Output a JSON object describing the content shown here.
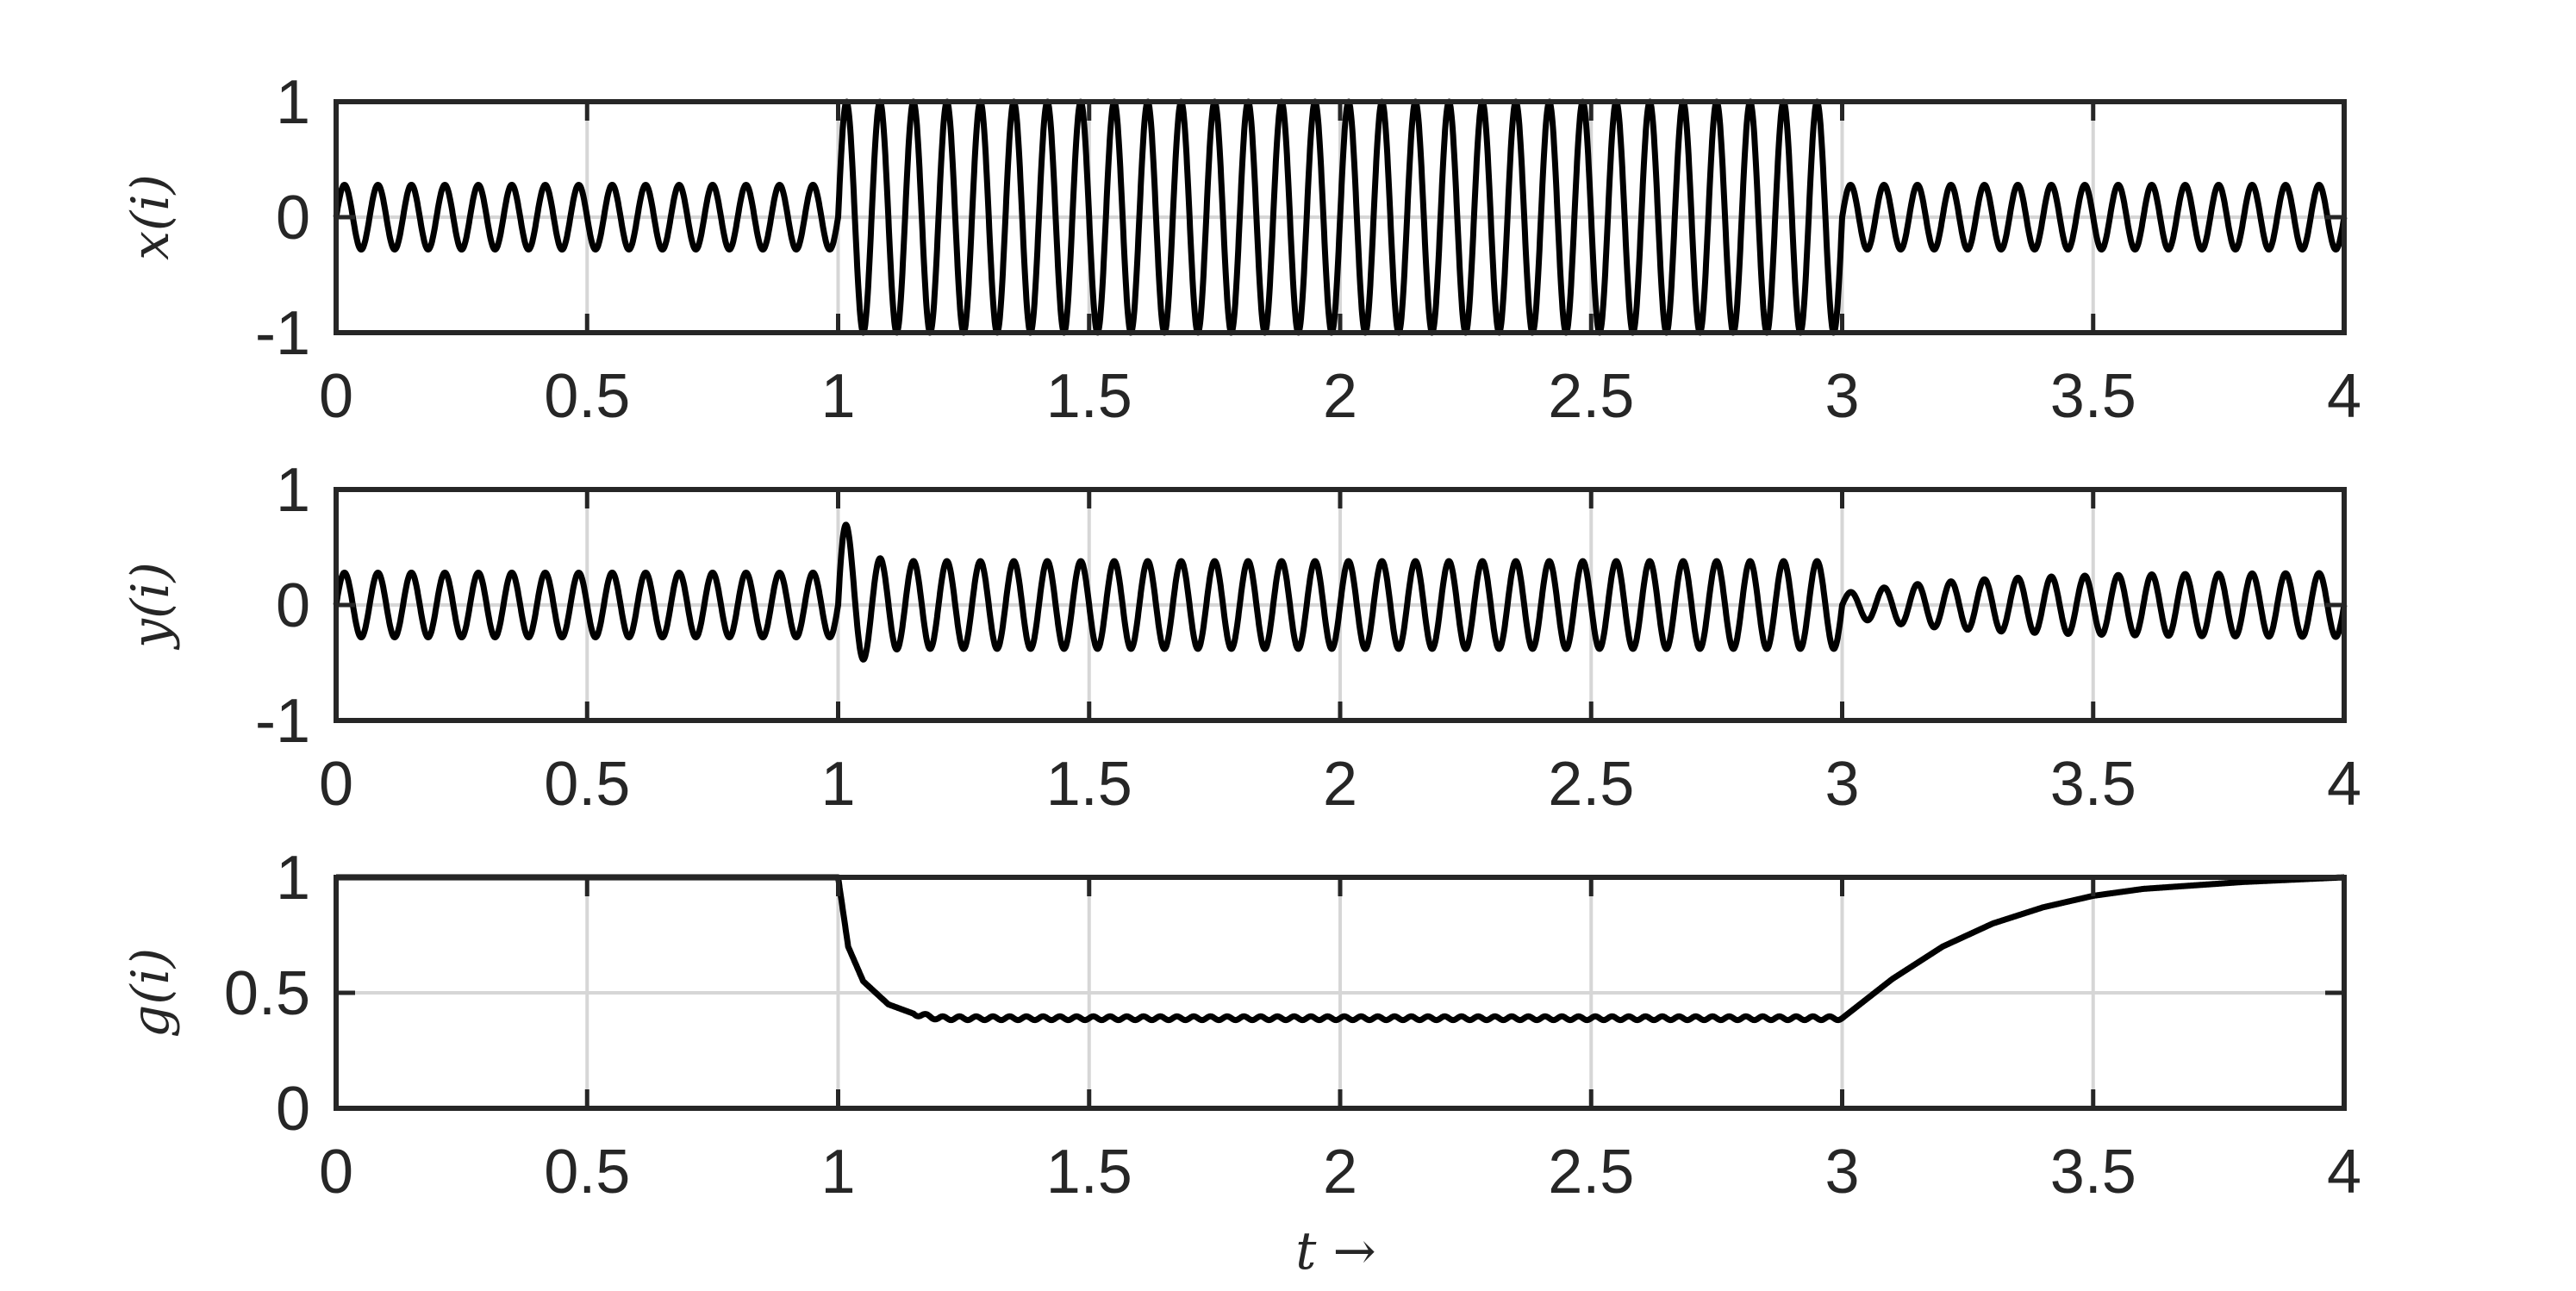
{
  "chart_data": [
    {
      "type": "line",
      "id": "x",
      "ylabel": "x(i)",
      "xlim": [
        0,
        4
      ],
      "ylim": [
        -1,
        1
      ],
      "xticks": [
        "0",
        "0.5",
        "1",
        "1.5",
        "2",
        "2.5",
        "3",
        "3.5",
        "4"
      ],
      "yticks": [
        "1",
        "0",
        "-1"
      ],
      "grid": true,
      "series": [
        {
          "segments": [
            {
              "t_start": 0,
              "t_end": 1,
              "amplitude": 0.28,
              "frequency_hz": 15
            },
            {
              "t_start": 1,
              "t_end": 3,
              "amplitude": 1.0,
              "frequency_hz": 15
            },
            {
              "t_start": 3,
              "t_end": 4,
              "amplitude": 0.28,
              "frequency_hz": 15
            }
          ]
        }
      ]
    },
    {
      "type": "line",
      "id": "y",
      "ylabel": "y(i)",
      "xlim": [
        0,
        4
      ],
      "ylim": [
        -1,
        1
      ],
      "xticks": [
        "0",
        "0.5",
        "1",
        "1.5",
        "2",
        "2.5",
        "3",
        "3.5",
        "4"
      ],
      "yticks": [
        "1",
        "0",
        "-1"
      ],
      "grid": true,
      "series": [
        {
          "peak_after_step": 0.78,
          "trough_after_step": -0.52,
          "segments": [
            {
              "t_start": 0,
              "t_end": 1,
              "amplitude": 0.28,
              "frequency_hz": 15
            },
            {
              "t_start": 1,
              "t_end": 3,
              "amplitude": 0.38,
              "frequency_hz": 15
            },
            {
              "t_start": 3,
              "t_end": 4,
              "amplitude_start": 0.1,
              "amplitude_end": 0.28,
              "frequency_hz": 15
            }
          ]
        }
      ]
    },
    {
      "type": "line",
      "id": "g",
      "ylabel": "g(i)",
      "xlabel": "t →",
      "xlim": [
        0,
        4
      ],
      "ylim": [
        0,
        1
      ],
      "xticks": [
        "0",
        "0.5",
        "1",
        "1.5",
        "2",
        "2.5",
        "3",
        "3.5",
        "4"
      ],
      "yticks": [
        "1",
        "0.5",
        "0"
      ],
      "grid": true,
      "series": [
        {
          "x": [
            0,
            1,
            1.02,
            1.05,
            1.1,
            1.15,
            1.2,
            3,
            3.1,
            3.2,
            3.3,
            3.4,
            3.5,
            3.6,
            3.8,
            4
          ],
          "y": [
            1,
            1,
            0.7,
            0.55,
            0.45,
            0.41,
            0.39,
            0.39,
            0.56,
            0.7,
            0.8,
            0.87,
            0.92,
            0.95,
            0.98,
            1
          ]
        }
      ]
    }
  ]
}
